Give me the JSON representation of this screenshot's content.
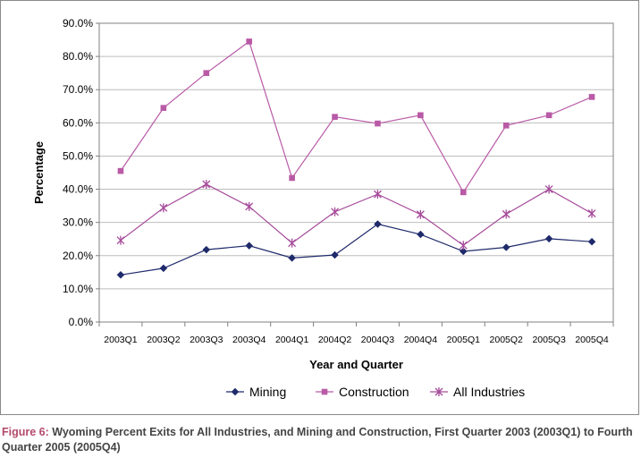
{
  "chart_data": {
    "type": "line",
    "title": "",
    "xlabel": "Year and Quarter",
    "ylabel": "Percentage",
    "ylim": [
      0,
      90
    ],
    "ytick_step": 10,
    "ytick_labels": [
      "0.0%",
      "10.0%",
      "20.0%",
      "30.0%",
      "40.0%",
      "50.0%",
      "60.0%",
      "70.0%",
      "80.0%",
      "90.0%"
    ],
    "categories": [
      "2003Q1",
      "2003Q2",
      "2003Q3",
      "2003Q4",
      "2004Q1",
      "2004Q2",
      "2004Q3",
      "2004Q4",
      "2005Q1",
      "2005Q2",
      "2005Q3",
      "2005Q4"
    ],
    "grid": "horizontal",
    "legend_position": "bottom",
    "series": [
      {
        "name": "Mining",
        "color": "#1f2a6b",
        "marker": "diamond",
        "values": [
          14.2,
          16.2,
          21.8,
          23.0,
          19.3,
          20.2,
          29.5,
          26.4,
          21.3,
          22.5,
          25.1,
          24.2
        ]
      },
      {
        "name": "Construction",
        "color": "#b95aa6",
        "marker": "square",
        "values": [
          45.5,
          64.5,
          75.0,
          84.5,
          43.4,
          61.8,
          59.8,
          62.3,
          39.1,
          59.2,
          62.3,
          67.8
        ]
      },
      {
        "name": "All Industries",
        "color": "#a64a9a",
        "marker": "x",
        "values": [
          24.6,
          34.4,
          41.5,
          34.8,
          23.8,
          33.2,
          38.5,
          32.4,
          23.1,
          32.5,
          40.0,
          32.7
        ]
      }
    ]
  },
  "caption": {
    "label": "Figure 6:",
    "text": " Wyoming Percent Exits for All Industries, and Mining and Construction, First Quarter 2003 (2003Q1) to Fourth Quarter 2005 (2005Q4)"
  }
}
